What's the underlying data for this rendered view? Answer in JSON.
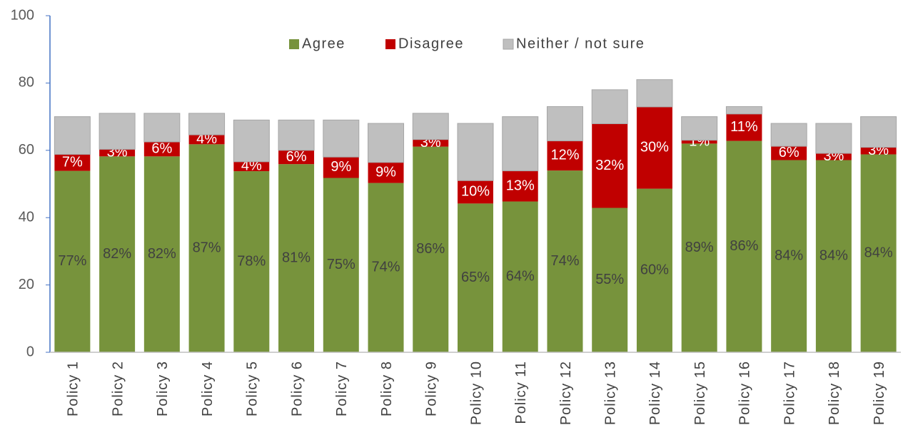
{
  "chart_data": {
    "type": "stacked_bar",
    "categories": [
      "Policy 1",
      "Policy 2",
      "Policy 3",
      "Policy 4",
      "Policy 5",
      "Policy 6",
      "Policy 7",
      "Policy 8",
      "Policy 9",
      "Policy 10",
      "Policy 11",
      "Policy 12",
      "Policy 13",
      "Policy 14",
      "Policy 15",
      "Policy 16",
      "Policy 17",
      "Policy 18",
      "Policy 19"
    ],
    "series": [
      {
        "name": "Agree",
        "color": "#77933c",
        "values": [
          53.9,
          58.2,
          58.2,
          61.8,
          53.8,
          55.9,
          51.8,
          50.3,
          61.1,
          44.2,
          44.8,
          54,
          42.9,
          48.6,
          62,
          62.8,
          57.1,
          57.1,
          58.8
        ],
        "value_labels": [
          "77%",
          "82%",
          "82%",
          "87%",
          "78%",
          "81%",
          "75%",
          "74%",
          "86%",
          "65%",
          "64%",
          "74%",
          "55%",
          "60%",
          "89%",
          "86%",
          "84%",
          "84%",
          "84%"
        ]
      },
      {
        "name": "Disagree",
        "color": "#c00000",
        "values": [
          4.9,
          2.1,
          4.3,
          2.8,
          2.8,
          4.1,
          6.2,
          6.1,
          2.1,
          6.8,
          9.1,
          8.8,
          25,
          24.3,
          1,
          8,
          4.1,
          2,
          2.1
        ],
        "value_labels": [
          "7%",
          "3%",
          "6%",
          "4%",
          "4%",
          "6%",
          "9%",
          "9%",
          "3%",
          "10%",
          "13%",
          "12%",
          "32%",
          "30%",
          "1%",
          "11%",
          "6%",
          "3%",
          "3%"
        ]
      },
      {
        "name": "Neither / not sure",
        "color": "#bfbfbf",
        "values": [
          11.2,
          10.7,
          8.5,
          6.4,
          12.4,
          9,
          11,
          11.6,
          7.8,
          17,
          16.1,
          10.2,
          10.1,
          8.1,
          7,
          2.2,
          6.8,
          8.9,
          9.1
        ]
      }
    ],
    "ylim": [
      0,
      100
    ],
    "yticks": [
      0,
      20,
      40,
      60,
      80,
      100
    ],
    "legend": "top"
  }
}
